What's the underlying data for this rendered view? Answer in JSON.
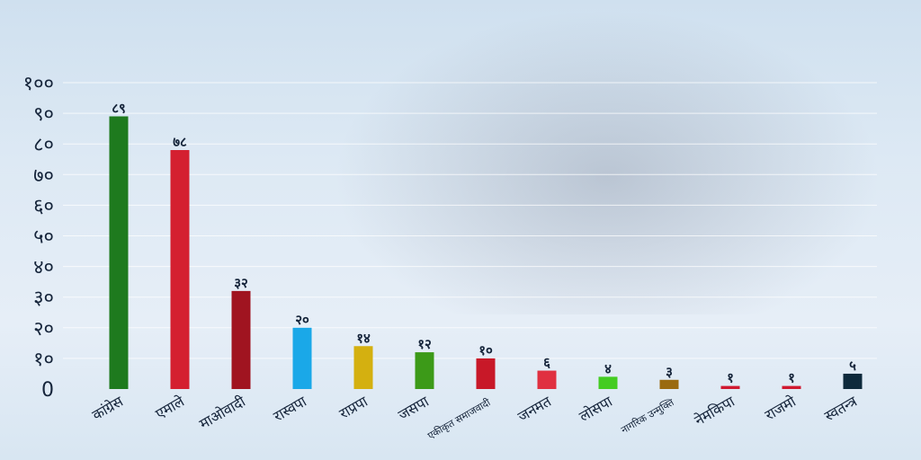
{
  "chart_data": {
    "type": "bar",
    "categories": [
      "कांग्रेस",
      "एमाले",
      "माओवादी",
      "रास्वपा",
      "राप्रपा",
      "जसपा",
      "एकीकृत समाजवादी",
      "जनमत",
      "लोसपा",
      "नागरिक उन्मुक्ति",
      "नेमकिपा",
      "राजमो",
      "स्वतन्त्र"
    ],
    "values": [
      89,
      78,
      32,
      20,
      14,
      12,
      10,
      6,
      4,
      3,
      1,
      1,
      5
    ],
    "value_labels": [
      "८९",
      "७८",
      "३२",
      "२०",
      "१४",
      "१२",
      "१०",
      "६",
      "४",
      "३",
      "१",
      "१",
      "५"
    ],
    "colors": [
      "#1e7a1e",
      "#d42030",
      "#a01420",
      "#1aa8e8",
      "#d4b010",
      "#3c9a18",
      "#c81828",
      "#e03040",
      "#44cc22",
      "#9a6a10",
      "#d01830",
      "#d01830",
      "#0e2a3c"
    ],
    "yticks": [
      "0",
      "१०",
      "२०",
      "३०",
      "४०",
      "५०",
      "६०",
      "७०",
      "८०",
      "९०",
      "१००"
    ],
    "ylim": [
      0,
      100
    ],
    "grid": true,
    "title": "",
    "xlabel": "",
    "ylabel": ""
  }
}
